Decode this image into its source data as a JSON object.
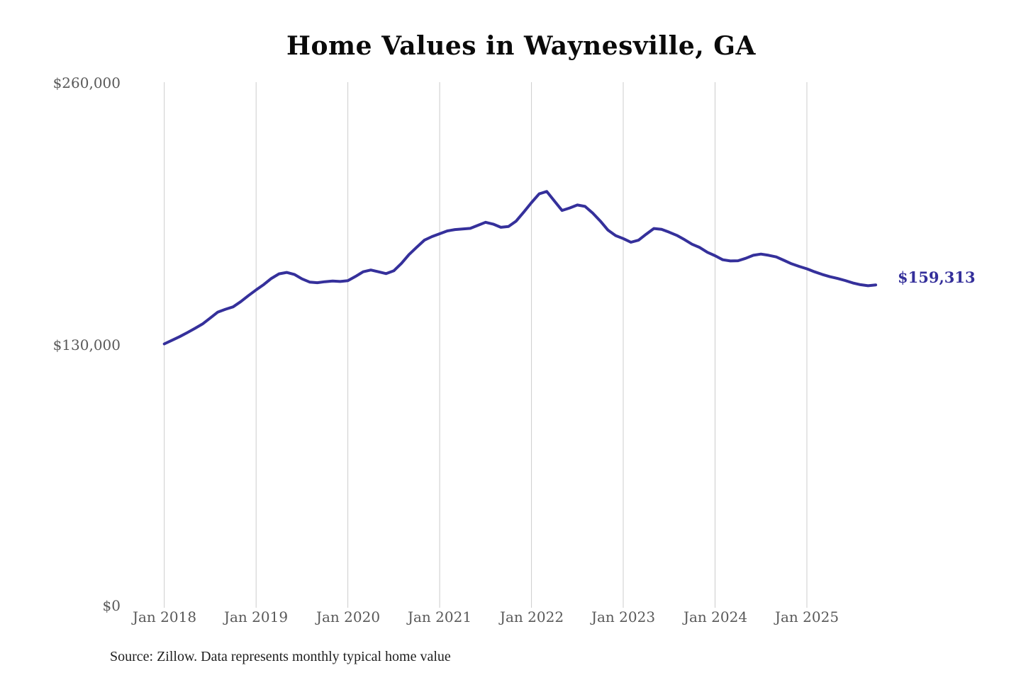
{
  "title": "Home Values in Waynesville, GA",
  "source_note": "Source: Zillow. Data represents monthly typical home value",
  "end_label": "$159,313",
  "colors": {
    "line": "#35309b",
    "grid": "#cccccc",
    "axis_text": "#595959",
    "title_text": "#0a0a0a",
    "source_text": "#1f1f1f",
    "background": "#ffffff"
  },
  "chart_data": {
    "type": "line",
    "title": "Home Values in Waynesville, GA",
    "xlabel": "",
    "ylabel": "",
    "ylim": [
      0,
      260000
    ],
    "grid": "vertical-only",
    "legend": "none",
    "x_start": "2018-01",
    "x_end": "2025-10",
    "x_interval": "monthly",
    "x_tick_labels": [
      "Jan 2018",
      "Jan 2019",
      "Jan 2020",
      "Jan 2021",
      "Jan 2022",
      "Jan 2023",
      "Jan 2024",
      "Jan 2025"
    ],
    "y_tick_labels": [
      "$0",
      "$130,000",
      "$260,000"
    ],
    "final_value": 159313,
    "series": [
      {
        "name": "Monthly typical home value",
        "values": [
          130000,
          131800,
          133600,
          135600,
          137700,
          139900,
          142800,
          145800,
          147200,
          148400,
          151000,
          154000,
          156800,
          159500,
          162500,
          164800,
          165500,
          164500,
          162300,
          160700,
          160400,
          160900,
          161200,
          161000,
          161400,
          163500,
          165800,
          166700,
          165800,
          164900,
          166300,
          170000,
          174400,
          178000,
          181500,
          183300,
          184700,
          186100,
          186800,
          187100,
          187400,
          188900,
          190400,
          189500,
          187900,
          188300,
          191000,
          195500,
          200200,
          204500,
          205700,
          201000,
          196300,
          197500,
          199000,
          198300,
          195000,
          191000,
          186500,
          183800,
          182300,
          180500,
          181500,
          184500,
          187300,
          186900,
          185500,
          183900,
          181800,
          179500,
          177900,
          175500,
          173800,
          171800,
          171200,
          171300,
          172500,
          174000,
          174600,
          174000,
          173200,
          171500,
          169800,
          168500,
          167300,
          165800,
          164500,
          163400,
          162500,
          161500,
          160300,
          159400,
          158900,
          159313
        ]
      }
    ]
  }
}
